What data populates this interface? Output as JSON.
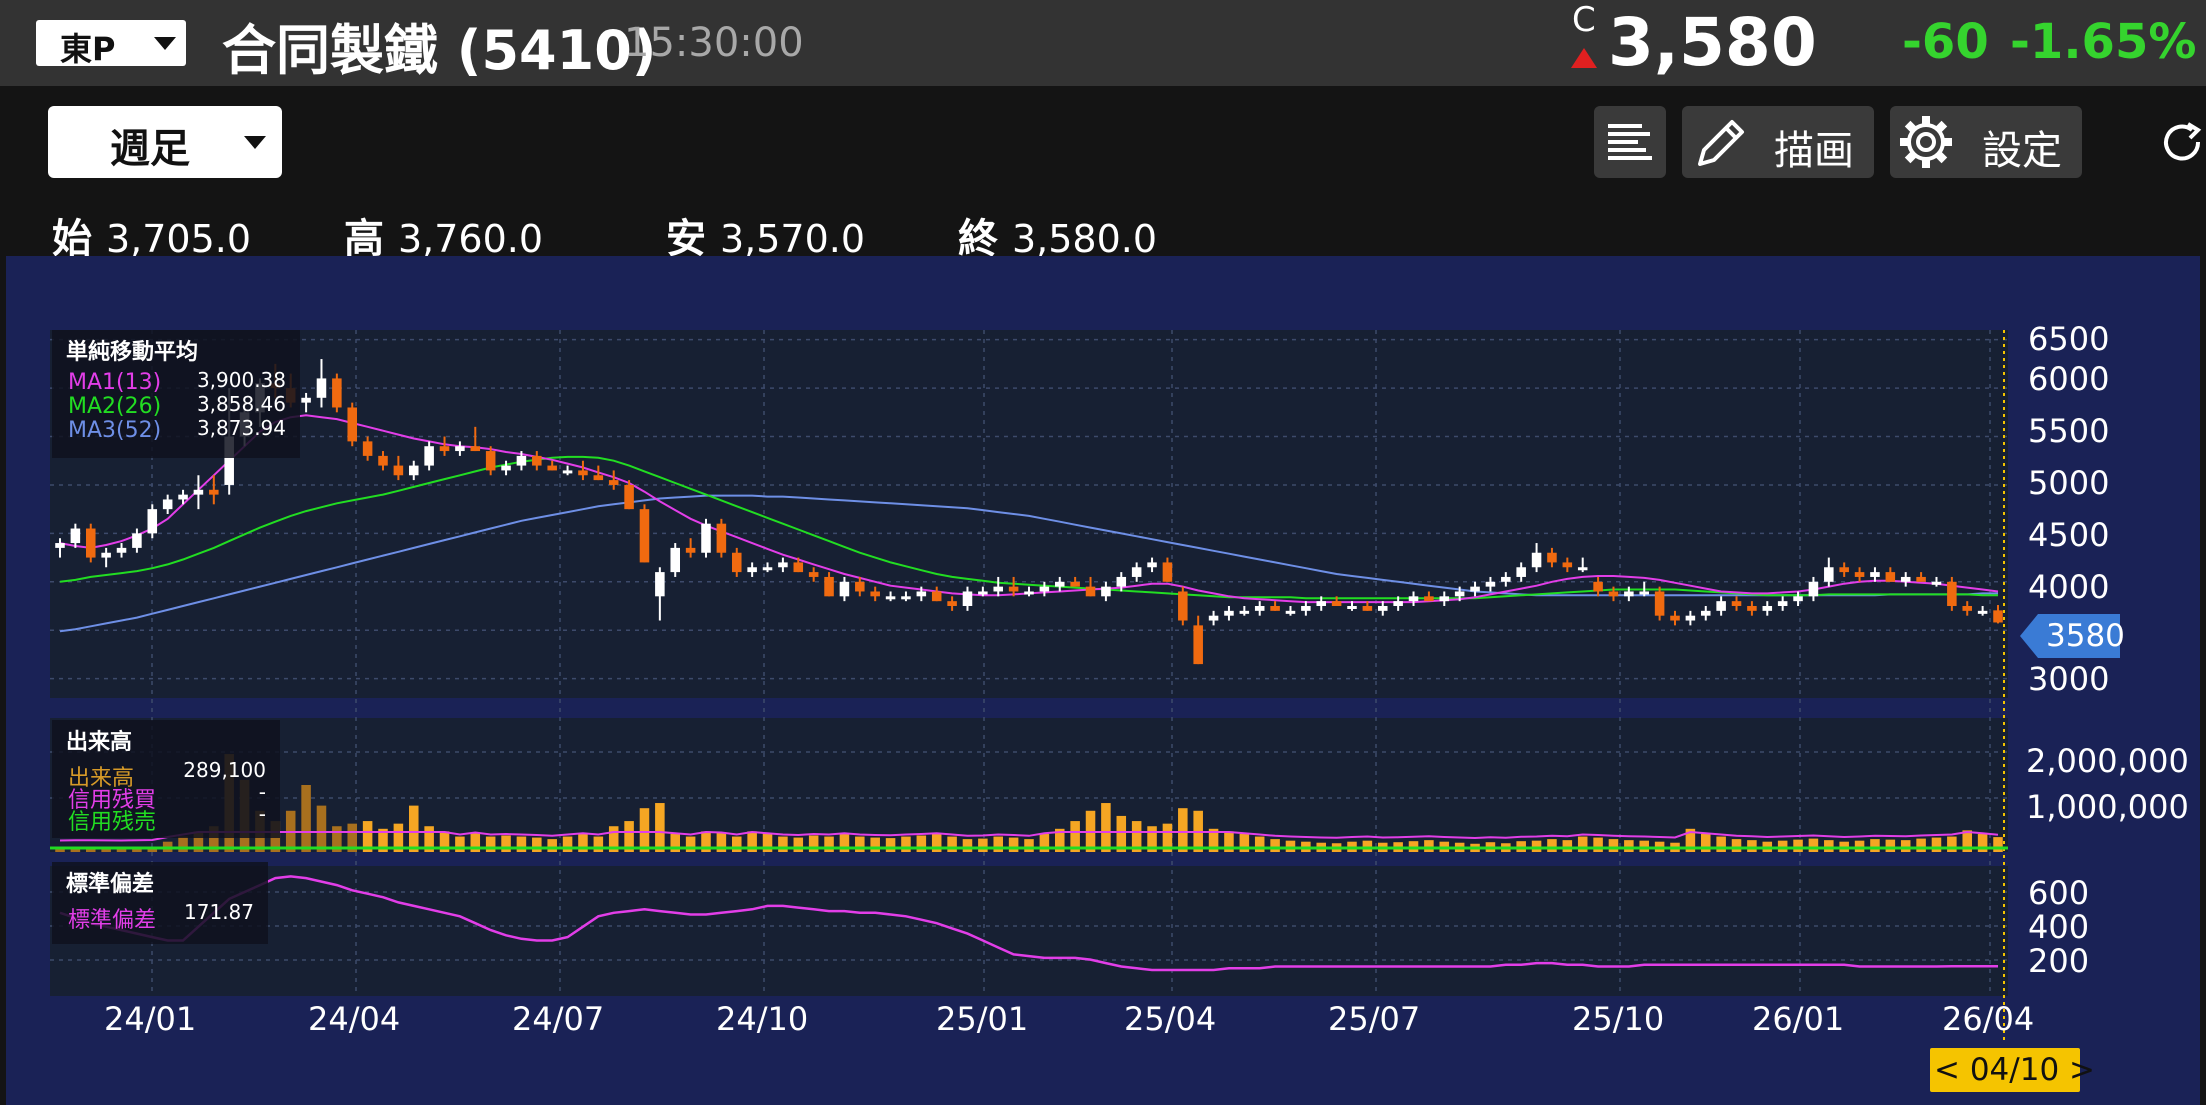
{
  "header": {
    "market": "東P",
    "title": "合同製鐵 (5410)",
    "time": "15:30:00",
    "c_label": "C",
    "price": "3,580",
    "change": "-60",
    "change_pct": "-1.65%"
  },
  "toolbar": {
    "period": "週足",
    "draw_label": "描画",
    "settings_label": "設定"
  },
  "ohlc": {
    "open_label": "始",
    "open": "3,705.0",
    "high_label": "高",
    "high": "3,760.0",
    "low_label": "安",
    "low": "3,570.0",
    "close_label": "終",
    "close": "3,580.0"
  },
  "colors": {
    "bg": "#141414",
    "chart_bg": "#1a2256",
    "plot_bg": "#172033",
    "up": "#ffffff",
    "down": "#f06a10",
    "ma1": "#e23ee8",
    "ma2": "#22dd22",
    "ma3": "#6e8fe6",
    "positive": "#35d42e",
    "price_tag": "#3a7bd5",
    "date_tag": "#f5c400"
  },
  "icons": [
    "dropdown-caret-icon",
    "up-triangle-icon",
    "list-icon",
    "pencil-icon",
    "gear-icon",
    "refresh-icon"
  ],
  "price_panel": {
    "legend_title": "単純移動平均",
    "ma": [
      {
        "label": "MA1(13)",
        "value": "3,900.38"
      },
      {
        "label": "MA2(26)",
        "value": "3,858.46"
      },
      {
        "label": "MA3(52)",
        "value": "3,873.94"
      }
    ],
    "y_ticks": [
      "6500",
      "6000",
      "5500",
      "5000",
      "4500",
      "4000",
      "3000"
    ],
    "current_price_tag": "3580"
  },
  "volume_panel": {
    "legend_title": "出来高",
    "rows": [
      {
        "label": "出来高",
        "value": "289,100"
      },
      {
        "label": "信用残買",
        "value": "-"
      },
      {
        "label": "信用残売",
        "value": "-"
      }
    ],
    "y_ticks": [
      "2,000,000",
      "1,000,000"
    ]
  },
  "std_panel": {
    "legend_title": "標準偏差",
    "row": {
      "label": "標準偏差",
      "value": "171.87"
    },
    "y_ticks": [
      "600",
      "400",
      "200"
    ]
  },
  "x_ticks": [
    "24/01",
    "24/04",
    "24/07",
    "24/10",
    "25/01",
    "25/04",
    "25/07",
    "25/10",
    "26/01",
    "26/04"
  ],
  "date_tag": "< 04/10 >",
  "chart_data": {
    "type": "candlestick",
    "title": "",
    "y_range": [
      2800,
      6600
    ],
    "candles": [
      [
        4350,
        4450,
        4250,
        4400
      ],
      [
        4400,
        4600,
        4350,
        4550
      ],
      [
        4550,
        4600,
        4200,
        4250
      ],
      [
        4250,
        4350,
        4150,
        4300
      ],
      [
        4300,
        4400,
        4250,
        4350
      ],
      [
        4350,
        4550,
        4300,
        4500
      ],
      [
        4500,
        4800,
        4450,
        4750
      ],
      [
        4750,
        4900,
        4700,
        4850
      ],
      [
        4850,
        4950,
        4800,
        4900
      ],
      [
        4900,
        5100,
        4750,
        4950
      ],
      [
        4950,
        5100,
        4800,
        4900
      ],
      [
        5000,
        6000,
        4900,
        5500
      ],
      [
        5500,
        5850,
        5400,
        5750
      ],
      [
        5750,
        6100,
        5600,
        6050
      ],
      [
        6050,
        6250,
        5900,
        6000
      ],
      [
        6000,
        6150,
        5800,
        5850
      ],
      [
        5850,
        5950,
        5750,
        5900
      ],
      [
        5900,
        6300,
        5800,
        6100
      ],
      [
        6100,
        6150,
        5750,
        5800
      ],
      [
        5800,
        5850,
        5400,
        5450
      ],
      [
        5450,
        5500,
        5250,
        5300
      ],
      [
        5300,
        5350,
        5150,
        5200
      ],
      [
        5200,
        5300,
        5050,
        5100
      ],
      [
        5100,
        5250,
        5050,
        5200
      ],
      [
        5200,
        5450,
        5150,
        5400
      ],
      [
        5400,
        5500,
        5300,
        5350
      ],
      [
        5350,
        5450,
        5300,
        5400
      ],
      [
        5400,
        5600,
        5350,
        5350
      ],
      [
        5350,
        5400,
        5100,
        5150
      ],
      [
        5150,
        5250,
        5100,
        5200
      ],
      [
        5200,
        5350,
        5150,
        5300
      ],
      [
        5300,
        5350,
        5150,
        5200
      ],
      [
        5200,
        5250,
        5150,
        5150
      ],
      [
        5150,
        5200,
        5100,
        5150
      ],
      [
        5150,
        5250,
        5050,
        5100
      ],
      [
        5100,
        5200,
        5050,
        5050
      ],
      [
        5050,
        5150,
        4950,
        5000
      ],
      [
        5000,
        5050,
        4750,
        4750
      ],
      [
        4750,
        4800,
        4200,
        4200
      ],
      [
        3850,
        4150,
        3600,
        4100
      ],
      [
        4100,
        4400,
        4050,
        4350
      ],
      [
        4350,
        4450,
        4250,
        4300
      ],
      [
        4300,
        4650,
        4250,
        4600
      ],
      [
        4600,
        4650,
        4250,
        4300
      ],
      [
        4300,
        4350,
        4050,
        4100
      ],
      [
        4100,
        4200,
        4050,
        4150
      ],
      [
        4150,
        4200,
        4100,
        4150
      ],
      [
        4150,
        4250,
        4100,
        4200
      ],
      [
        4200,
        4250,
        4100,
        4100
      ],
      [
        4100,
        4150,
        4000,
        4050
      ],
      [
        4050,
        4100,
        3850,
        3850
      ],
      [
        3850,
        4050,
        3800,
        4000
      ],
      [
        4000,
        4050,
        3850,
        3900
      ],
      [
        3900,
        3950,
        3800,
        3850
      ],
      [
        3850,
        3900,
        3800,
        3850
      ],
      [
        3850,
        3900,
        3800,
        3850
      ],
      [
        3850,
        3950,
        3800,
        3900
      ],
      [
        3900,
        3950,
        3800,
        3800
      ],
      [
        3800,
        3850,
        3700,
        3750
      ],
      [
        3750,
        3950,
        3700,
        3900
      ],
      [
        3900,
        3950,
        3850,
        3900
      ],
      [
        3900,
        4050,
        3850,
        3950
      ],
      [
        3950,
        4050,
        3850,
        3900
      ],
      [
        3900,
        3950,
        3850,
        3900
      ],
      [
        3900,
        4000,
        3850,
        3950
      ],
      [
        3950,
        4050,
        3900,
        4000
      ],
      [
        4000,
        4050,
        3950,
        3950
      ],
      [
        3950,
        4050,
        3850,
        3850
      ],
      [
        3850,
        4000,
        3800,
        3950
      ],
      [
        3950,
        4100,
        3900,
        4050
      ],
      [
        4050,
        4200,
        4000,
        4150
      ],
      [
        4150,
        4250,
        4100,
        4200
      ],
      [
        4200,
        4250,
        4000,
        4000
      ],
      [
        3900,
        3950,
        3550,
        3600
      ],
      [
        3550,
        3650,
        3150,
        3150
      ],
      [
        3600,
        3700,
        3550,
        3650
      ],
      [
        3650,
        3750,
        3600,
        3700
      ],
      [
        3700,
        3750,
        3650,
        3700
      ],
      [
        3700,
        3800,
        3650,
        3750
      ],
      [
        3750,
        3800,
        3700,
        3700
      ],
      [
        3700,
        3750,
        3650,
        3700
      ],
      [
        3700,
        3800,
        3650,
        3750
      ],
      [
        3750,
        3850,
        3700,
        3800
      ],
      [
        3800,
        3850,
        3750,
        3750
      ],
      [
        3750,
        3800,
        3700,
        3750
      ],
      [
        3750,
        3800,
        3700,
        3700
      ],
      [
        3700,
        3800,
        3650,
        3750
      ],
      [
        3750,
        3850,
        3700,
        3800
      ],
      [
        3800,
        3900,
        3750,
        3850
      ],
      [
        3850,
        3900,
        3800,
        3800
      ],
      [
        3800,
        3900,
        3750,
        3850
      ],
      [
        3850,
        3950,
        3800,
        3900
      ],
      [
        3900,
        4000,
        3850,
        3950
      ],
      [
        3950,
        4050,
        3900,
        4000
      ],
      [
        4000,
        4100,
        3950,
        4050
      ],
      [
        4050,
        4200,
        4000,
        4150
      ],
      [
        4150,
        4400,
        4100,
        4300
      ],
      [
        4300,
        4350,
        4150,
        4200
      ],
      [
        4200,
        4250,
        4100,
        4150
      ],
      [
        4150,
        4250,
        4100,
        4150
      ],
      [
        4000,
        4050,
        3850,
        3900
      ],
      [
        3900,
        3950,
        3800,
        3850
      ],
      [
        3850,
        3950,
        3800,
        3900
      ],
      [
        3900,
        4000,
        3850,
        3900
      ],
      [
        3900,
        3950,
        3600,
        3650
      ],
      [
        3650,
        3700,
        3550,
        3600
      ],
      [
        3600,
        3700,
        3550,
        3650
      ],
      [
        3650,
        3750,
        3600,
        3700
      ],
      [
        3700,
        3850,
        3650,
        3800
      ],
      [
        3800,
        3850,
        3700,
        3750
      ],
      [
        3750,
        3800,
        3650,
        3700
      ],
      [
        3700,
        3800,
        3650,
        3750
      ],
      [
        3750,
        3850,
        3700,
        3800
      ],
      [
        3800,
        3900,
        3750,
        3850
      ],
      [
        3850,
        4050,
        3800,
        4000
      ],
      [
        4000,
        4250,
        3950,
        4150
      ],
      [
        4150,
        4200,
        4050,
        4100
      ],
      [
        4100,
        4150,
        4000,
        4050
      ],
      [
        4050,
        4150,
        4000,
        4100
      ],
      [
        4100,
        4150,
        4000,
        4000
      ],
      [
        4000,
        4100,
        3950,
        4050
      ],
      [
        4050,
        4100,
        4000,
        4000
      ],
      [
        4000,
        4050,
        3950,
        4000
      ],
      [
        4000,
        4050,
        3700,
        3750
      ],
      [
        3750,
        3800,
        3650,
        3700
      ],
      [
        3700,
        3750,
        3650,
        3700
      ],
      [
        3705,
        3760,
        3570,
        3580
      ]
    ],
    "ma1": [
      4400,
      4370,
      4350,
      4380,
      4420,
      4480,
      4550,
      4650,
      4800,
      4950,
      5100,
      5250,
      5400,
      5550,
      5650,
      5700,
      5720,
      5700,
      5680,
      5640,
      5600,
      5560,
      5520,
      5480,
      5450,
      5420,
      5400,
      5390,
      5370,
      5340,
      5320,
      5290,
      5260,
      5220,
      5180,
      5130,
      5080,
      5020,
      4930,
      4830,
      4740,
      4650,
      4580,
      4520,
      4460,
      4400,
      4340,
      4280,
      4230,
      4180,
      4130,
      4080,
      4040,
      4000,
      3960,
      3940,
      3920,
      3900,
      3880,
      3870,
      3860,
      3860,
      3870,
      3880,
      3890,
      3900,
      3910,
      3920,
      3930,
      3940,
      3960,
      3980,
      3980,
      3950,
      3910,
      3880,
      3850,
      3830,
      3820,
      3810,
      3800,
      3790,
      3790,
      3790,
      3790,
      3790,
      3790,
      3790,
      3790,
      3800,
      3810,
      3820,
      3840,
      3870,
      3900,
      3930,
      3960,
      4000,
      4030,
      4050,
      4060,
      4060,
      4050,
      4040,
      4020,
      3990,
      3960,
      3930,
      3900,
      3890,
      3880,
      3880,
      3890,
      3900,
      3920,
      3950,
      3980,
      4000,
      4010,
      4010,
      4000,
      3990,
      3980,
      3960,
      3940,
      3920,
      3900
    ],
    "ma2": [
      4000,
      4020,
      4050,
      4070,
      4090,
      4110,
      4140,
      4180,
      4230,
      4290,
      4350,
      4420,
      4490,
      4560,
      4620,
      4680,
      4730,
      4770,
      4810,
      4840,
      4870,
      4900,
      4940,
      4980,
      5020,
      5060,
      5100,
      5140,
      5180,
      5210,
      5240,
      5260,
      5280,
      5290,
      5290,
      5280,
      5250,
      5200,
      5140,
      5080,
      5020,
      4960,
      4900,
      4840,
      4780,
      4720,
      4660,
      4600,
      4540,
      4480,
      4420,
      4360,
      4300,
      4250,
      4200,
      4160,
      4120,
      4080,
      4050,
      4030,
      4010,
      3990,
      3980,
      3970,
      3960,
      3950,
      3940,
      3930,
      3920,
      3910,
      3900,
      3890,
      3880,
      3870,
      3860,
      3850,
      3840,
      3840,
      3840,
      3840,
      3840,
      3830,
      3830,
      3830,
      3830,
      3830,
      3830,
      3830,
      3830,
      3830,
      3830,
      3830,
      3830,
      3840,
      3850,
      3860,
      3870,
      3880,
      3890,
      3900,
      3910,
      3920,
      3920,
      3920,
      3920,
      3920,
      3910,
      3900,
      3890,
      3880,
      3870,
      3860,
      3860,
      3860,
      3860,
      3870,
      3870,
      3870,
      3870,
      3870,
      3870,
      3870,
      3870,
      3870,
      3870,
      3860,
      3860
    ],
    "ma3": [
      3490,
      3510,
      3540,
      3570,
      3600,
      3630,
      3670,
      3710,
      3750,
      3790,
      3830,
      3870,
      3910,
      3950,
      3990,
      4030,
      4070,
      4110,
      4150,
      4190,
      4230,
      4270,
      4310,
      4350,
      4390,
      4430,
      4470,
      4510,
      4550,
      4590,
      4630,
      4660,
      4690,
      4720,
      4750,
      4780,
      4800,
      4820,
      4840,
      4860,
      4870,
      4880,
      4890,
      4890,
      4890,
      4890,
      4880,
      4880,
      4870,
      4860,
      4850,
      4840,
      4830,
      4820,
      4810,
      4800,
      4790,
      4780,
      4770,
      4760,
      4740,
      4720,
      4700,
      4680,
      4650,
      4620,
      4590,
      4560,
      4530,
      4500,
      4470,
      4440,
      4410,
      4380,
      4350,
      4320,
      4290,
      4260,
      4230,
      4200,
      4170,
      4140,
      4110,
      4080,
      4060,
      4040,
      4020,
      4000,
      3980,
      3960,
      3940,
      3920,
      3900,
      3890,
      3880,
      3870,
      3860,
      3860,
      3860,
      3860,
      3860,
      3860,
      3860,
      3860,
      3860,
      3860,
      3860,
      3860,
      3860,
      3860,
      3860,
      3860,
      3860,
      3860,
      3860,
      3860,
      3860,
      3860,
      3860,
      3870,
      3870,
      3870,
      3870,
      3870,
      3870,
      3880,
      3880
    ],
    "volume": [
      60000,
      70000,
      70000,
      65000,
      60000,
      70000,
      80000,
      200000,
      300000,
      400000,
      500000,
      1900000,
      1400000,
      800000,
      600000,
      800000,
      1300000,
      900000,
      500000,
      550000,
      600000,
      450000,
      550000,
      900000,
      500000,
      400000,
      300000,
      380000,
      300000,
      320000,
      300000,
      280000,
      250000,
      300000,
      350000,
      300000,
      500000,
      600000,
      850000,
      950000,
      350000,
      300000,
      400000,
      380000,
      300000,
      400000,
      350000,
      300000,
      280000,
      320000,
      300000,
      350000,
      300000,
      280000,
      270000,
      300000,
      320000,
      350000,
      300000,
      250000,
      260000,
      300000,
      280000,
      250000,
      350000,
      450000,
      600000,
      800000,
      950000,
      700000,
      600000,
      500000,
      550000,
      850000,
      800000,
      450000,
      400000,
      350000,
      300000,
      250000,
      220000,
      200000,
      180000,
      170000,
      200000,
      220000,
      180000,
      190000,
      210000,
      230000,
      200000,
      180000,
      160000,
      190000,
      170000,
      210000,
      220000,
      250000,
      230000,
      300000,
      280000,
      250000,
      230000,
      220000,
      200000,
      180000,
      450000,
      350000,
      300000,
      250000,
      230000,
      200000,
      220000,
      240000,
      260000,
      230000,
      200000,
      220000,
      250000,
      240000,
      230000,
      260000,
      280000,
      300000,
      420000,
      350000,
      289100
    ],
    "std_dev": [
      480,
      450,
      420,
      400,
      380,
      360,
      340,
      320,
      320,
      400,
      480,
      560,
      600,
      640,
      680,
      690,
      680,
      660,
      640,
      610,
      590,
      570,
      540,
      520,
      500,
      480,
      460,
      420,
      380,
      350,
      330,
      320,
      320,
      340,
      400,
      460,
      480,
      490,
      500,
      490,
      480,
      470,
      470,
      480,
      490,
      500,
      520,
      520,
      510,
      500,
      490,
      490,
      480,
      480,
      470,
      460,
      440,
      420,
      390,
      360,
      320,
      280,
      240,
      230,
      220,
      220,
      220,
      210,
      190,
      170,
      160,
      150,
      150,
      150,
      150,
      150,
      160,
      160,
      160,
      170,
      170,
      170,
      170,
      170,
      170,
      170,
      170,
      170,
      170,
      170,
      170,
      170,
      170,
      170,
      180,
      180,
      190,
      190,
      180,
      180,
      170,
      170,
      170,
      180,
      180,
      180,
      180,
      180,
      180,
      180,
      180,
      180,
      180,
      180,
      180,
      180,
      180,
      170,
      170,
      170,
      170,
      170,
      170,
      171.87,
      171.87,
      171.87,
      171.87
    ]
  }
}
